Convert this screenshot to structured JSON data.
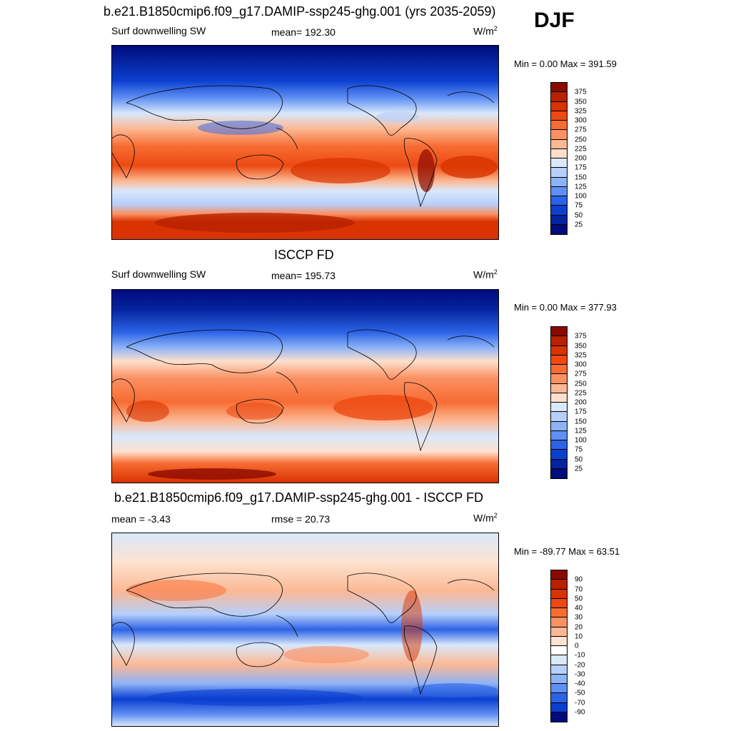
{
  "season": "DJF",
  "panels": [
    {
      "title": "b.e21.B1850cmip6.f09_g17.DAMIP-ssp245-ghg.001 (yrs 2035-2059)",
      "left_label": "Surf downwelling SW",
      "center_label": "mean= 192.30",
      "units": "W/m",
      "units_sup": "2",
      "minmax": "Min =   0.00 Max = 391.59",
      "colorbar": {
        "labels": [
          "375",
          "350",
          "325",
          "300",
          "275",
          "250",
          "225",
          "200",
          "175",
          "150",
          "125",
          "100",
          "75",
          "50",
          "25"
        ],
        "colors": [
          "#8b0a00",
          "#b82000",
          "#d83300",
          "#ec4a12",
          "#f76c33",
          "#fb9062",
          "#fcb894",
          "#fde0cc",
          "#d9e8fb",
          "#b6cffb",
          "#8db3f7",
          "#5f8ff2",
          "#2c63e6",
          "#0b3fd0",
          "#05239e",
          "#000b7e"
        ]
      }
    },
    {
      "title": "ISCCP FD",
      "left_label": "Surf downwelling SW",
      "center_label": "mean= 195.73",
      "units": "W/m",
      "units_sup": "2",
      "minmax": "Min =   0.00 Max = 377.93",
      "colorbar": {
        "labels": [
          "375",
          "350",
          "325",
          "300",
          "275",
          "250",
          "225",
          "200",
          "175",
          "150",
          "125",
          "100",
          "75",
          "50",
          "25"
        ],
        "colors": [
          "#8b0a00",
          "#b82000",
          "#d83300",
          "#ec4a12",
          "#f76c33",
          "#fb9062",
          "#fcb894",
          "#fde0cc",
          "#d9e8fb",
          "#b6cffb",
          "#8db3f7",
          "#5f8ff2",
          "#2c63e6",
          "#0b3fd0",
          "#05239e",
          "#000b7e"
        ]
      }
    },
    {
      "title": "b.e21.B1850cmip6.f09_g17.DAMIP-ssp245-ghg.001 - ISCCP FD",
      "left_label": "mean =  -3.43",
      "center_label": "rmse =  20.73",
      "units": "W/m",
      "units_sup": "2",
      "minmax": "Min = -89.77 Max =  63.51",
      "colorbar": {
        "labels": [
          "90",
          "70",
          "50",
          "40",
          "30",
          "20",
          "10",
          "0",
          "-10",
          "-20",
          "-30",
          "-40",
          "-50",
          "-70",
          "-90"
        ],
        "colors": [
          "#8b0a00",
          "#b82000",
          "#d83300",
          "#ec4a12",
          "#f76c33",
          "#fb9062",
          "#fcb894",
          "#fde3d0",
          "#ffffff",
          "#d9e8fb",
          "#b6cffb",
          "#8db3f7",
          "#5f8ff2",
          "#2c63e6",
          "#0b3fd0",
          "#000b7e"
        ]
      }
    }
  ]
}
